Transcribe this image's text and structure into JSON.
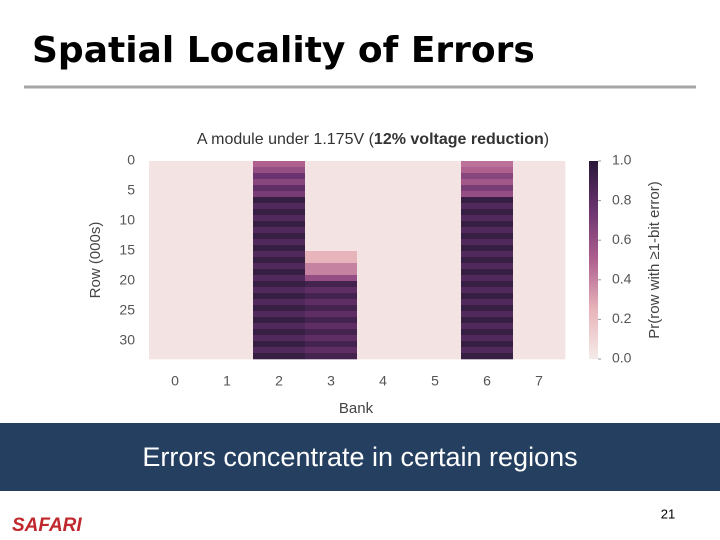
{
  "slide": {
    "title": "Spatial Locality of Errors",
    "banner": "Errors concentrate in certain regions",
    "logo": "SAFARI",
    "page_number": "21"
  },
  "chart_data": {
    "type": "heatmap",
    "title_parts": [
      "A module under 1.175V (",
      "12% voltage reduction",
      ")"
    ],
    "x_label": "Bank",
    "y_label": "Row (000s)",
    "colorbar_label": "Pr(row with ≥1-bit error)",
    "categories": [
      "0",
      "1",
      "2",
      "3",
      "4",
      "5",
      "6",
      "7"
    ],
    "ybins": [
      0,
      1,
      2,
      3,
      4,
      5,
      6,
      7,
      8,
      9,
      10,
      11,
      12,
      13,
      14,
      15,
      16,
      17,
      18,
      19,
      20,
      21,
      22,
      23,
      24,
      25,
      26,
      27,
      28,
      29,
      30,
      31,
      32,
      33
    ],
    "ylim": [
      0,
      33
    ],
    "yticks": [
      0,
      5,
      10,
      15,
      20,
      25,
      30
    ],
    "clim": [
      0,
      1
    ],
    "cticks": [
      {
        "value": 0,
        "label": "0.0"
      },
      {
        "value": 0.2,
        "label": "0.2"
      },
      {
        "value": 0.4,
        "label": "0.4"
      },
      {
        "value": 0.6,
        "label": "0.6"
      },
      {
        "value": 0.8,
        "label": "0.8"
      },
      {
        "value": 1,
        "label": "1.0"
      }
    ],
    "colormap": [
      "#f5ebe8",
      "#e8b4bb",
      "#b0608f",
      "#6b3470",
      "#2a1838"
    ],
    "z": [
      [
        0.03,
        0.03,
        0.5,
        0.03,
        0.03,
        0.03,
        0.45,
        0.03
      ],
      [
        0.03,
        0.03,
        0.6,
        0.03,
        0.03,
        0.03,
        0.5,
        0.03
      ],
      [
        0.03,
        0.03,
        0.75,
        0.03,
        0.03,
        0.03,
        0.65,
        0.03
      ],
      [
        0.03,
        0.03,
        0.65,
        0.03,
        0.03,
        0.03,
        0.55,
        0.03
      ],
      [
        0.03,
        0.03,
        0.8,
        0.03,
        0.03,
        0.03,
        0.7,
        0.03
      ],
      [
        0.03,
        0.03,
        0.7,
        0.03,
        0.03,
        0.03,
        0.6,
        0.03
      ],
      [
        0.03,
        0.03,
        0.95,
        0.03,
        0.03,
        0.03,
        0.95,
        0.03
      ],
      [
        0.03,
        0.03,
        0.85,
        0.03,
        0.03,
        0.03,
        0.85,
        0.03
      ],
      [
        0.03,
        0.03,
        0.95,
        0.03,
        0.03,
        0.03,
        0.95,
        0.03
      ],
      [
        0.03,
        0.03,
        0.85,
        0.03,
        0.03,
        0.03,
        0.85,
        0.03
      ],
      [
        0.03,
        0.03,
        0.95,
        0.03,
        0.03,
        0.03,
        0.95,
        0.03
      ],
      [
        0.03,
        0.03,
        0.85,
        0.03,
        0.03,
        0.03,
        0.85,
        0.03
      ],
      [
        0.03,
        0.03,
        0.95,
        0.03,
        0.03,
        0.03,
        0.95,
        0.03
      ],
      [
        0.03,
        0.03,
        0.85,
        0.03,
        0.03,
        0.03,
        0.85,
        0.03
      ],
      [
        0.03,
        0.03,
        0.95,
        0.03,
        0.03,
        0.03,
        0.95,
        0.03
      ],
      [
        0.03,
        0.03,
        0.85,
        0.25,
        0.03,
        0.03,
        0.85,
        0.03
      ],
      [
        0.03,
        0.03,
        0.95,
        0.25,
        0.03,
        0.03,
        0.95,
        0.03
      ],
      [
        0.03,
        0.03,
        0.85,
        0.4,
        0.03,
        0.03,
        0.85,
        0.03
      ],
      [
        0.03,
        0.03,
        0.95,
        0.4,
        0.03,
        0.03,
        0.95,
        0.03
      ],
      [
        0.03,
        0.03,
        0.85,
        0.6,
        0.03,
        0.03,
        0.85,
        0.03
      ],
      [
        0.03,
        0.03,
        0.95,
        0.9,
        0.03,
        0.03,
        0.95,
        0.03
      ],
      [
        0.03,
        0.03,
        0.85,
        0.8,
        0.03,
        0.03,
        0.85,
        0.03
      ],
      [
        0.03,
        0.03,
        0.95,
        0.9,
        0.03,
        0.03,
        0.95,
        0.03
      ],
      [
        0.03,
        0.03,
        0.85,
        0.8,
        0.03,
        0.03,
        0.85,
        0.03
      ],
      [
        0.03,
        0.03,
        0.95,
        0.9,
        0.03,
        0.03,
        0.95,
        0.03
      ],
      [
        0.03,
        0.03,
        0.85,
        0.8,
        0.03,
        0.03,
        0.85,
        0.03
      ],
      [
        0.03,
        0.03,
        0.95,
        0.9,
        0.03,
        0.03,
        0.95,
        0.03
      ],
      [
        0.03,
        0.03,
        0.85,
        0.8,
        0.03,
        0.03,
        0.85,
        0.03
      ],
      [
        0.03,
        0.03,
        0.95,
        0.9,
        0.03,
        0.03,
        0.95,
        0.03
      ],
      [
        0.03,
        0.03,
        0.85,
        0.8,
        0.03,
        0.03,
        0.85,
        0.03
      ],
      [
        0.03,
        0.03,
        0.95,
        0.9,
        0.03,
        0.03,
        0.95,
        0.03
      ],
      [
        0.03,
        0.03,
        0.85,
        0.8,
        0.03,
        0.03,
        0.85,
        0.03
      ],
      [
        0.03,
        0.03,
        0.95,
        0.9,
        0.03,
        0.03,
        0.95,
        0.03
      ]
    ]
  }
}
